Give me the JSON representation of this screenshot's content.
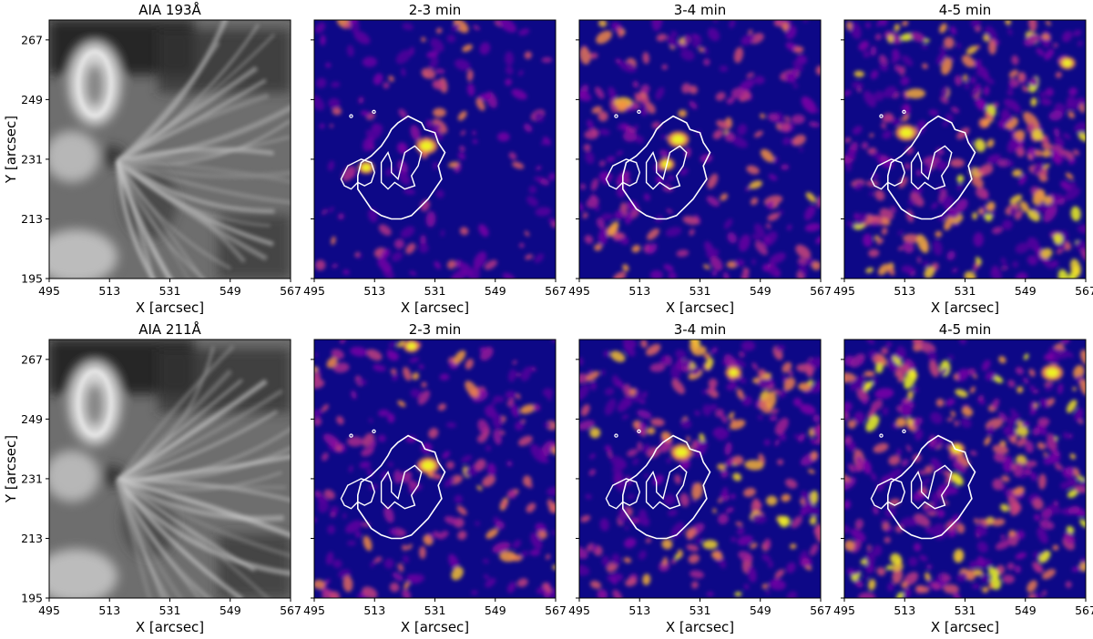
{
  "chart_data": [
    {
      "type": "heatmap",
      "title": "AIA 193Å",
      "colormap": "gray",
      "xlabel": "X [arcsec]",
      "ylabel": "Y [arcsec]",
      "xlim": [
        495,
        567
      ],
      "ylim": [
        195,
        273
      ],
      "xticks": [
        "495",
        "513",
        "531",
        "549",
        "567"
      ],
      "yticks": [
        "195",
        "213",
        "231",
        "249",
        "267"
      ],
      "contours": false
    },
    {
      "type": "heatmap",
      "title": "2-3 min",
      "colormap": "plasma",
      "activity_level": 0.25,
      "xlabel": "X [arcsec]",
      "ylabel": "",
      "xlim": [
        495,
        567
      ],
      "ylim": [
        195,
        273
      ],
      "xticks": [
        "495",
        "513",
        "531",
        "549",
        "567"
      ],
      "yticks": [
        "",
        "",
        "",
        "",
        ""
      ],
      "contours": true,
      "hotspots": [
        [
          528.5,
          235
        ],
        [
          510.5,
          228.5
        ]
      ]
    },
    {
      "type": "heatmap",
      "title": "3-4 min",
      "colormap": "plasma",
      "activity_level": 0.5,
      "xlabel": "X [arcsec]",
      "ylabel": "",
      "xlim": [
        495,
        567
      ],
      "ylim": [
        195,
        273
      ],
      "xticks": [
        "495",
        "513",
        "531",
        "549",
        "567"
      ],
      "yticks": [
        "",
        "",
        "",
        "",
        ""
      ],
      "contours": true,
      "hotspots": [
        [
          524.5,
          237
        ],
        [
          521,
          229.5
        ]
      ]
    },
    {
      "type": "heatmap",
      "title": "4-5 min",
      "colormap": "plasma",
      "activity_level": 0.8,
      "xlabel": "X [arcsec]",
      "ylabel": "",
      "xlim": [
        495,
        567
      ],
      "ylim": [
        195,
        273
      ],
      "xticks": [
        "495",
        "513",
        "531",
        "549",
        "567"
      ],
      "yticks": [
        "",
        "",
        "",
        "",
        ""
      ],
      "contours": true,
      "hotspots": [
        [
          513.5,
          239
        ],
        [
          561.5,
          260
        ]
      ]
    },
    {
      "type": "heatmap",
      "title": "AIA 211Å",
      "colormap": "gray",
      "xlabel": "X [arcsec]",
      "ylabel": "Y [arcsec]",
      "xlim": [
        495,
        567
      ],
      "ylim": [
        195,
        273
      ],
      "xticks": [
        "495",
        "513",
        "531",
        "549",
        "567"
      ],
      "yticks": [
        "195",
        "213",
        "231",
        "249",
        "267"
      ],
      "contours": false
    },
    {
      "type": "heatmap",
      "title": "2-3 min",
      "colormap": "plasma",
      "activity_level": 0.45,
      "xlabel": "X [arcsec]",
      "ylabel": "",
      "xlim": [
        495,
        567
      ],
      "ylim": [
        195,
        273
      ],
      "xticks": [
        "495",
        "513",
        "531",
        "549",
        "567"
      ],
      "yticks": [
        "",
        "",
        "",
        "",
        ""
      ],
      "contours": true,
      "hotspots": [
        [
          529,
          235
        ],
        [
          524,
          271
        ]
      ]
    },
    {
      "type": "heatmap",
      "title": "3-4 min",
      "colormap": "plasma",
      "activity_level": 0.65,
      "xlabel": "X [arcsec]",
      "ylabel": "",
      "xlim": [
        495,
        567
      ],
      "ylim": [
        195,
        273
      ],
      "xticks": [
        "495",
        "513",
        "531",
        "549",
        "567"
      ],
      "yticks": [
        "",
        "",
        "",
        "",
        ""
      ],
      "contours": true,
      "hotspots": [
        [
          525.5,
          239
        ],
        [
          541,
          263
        ]
      ]
    },
    {
      "type": "heatmap",
      "title": "4-5 min",
      "colormap": "plasma",
      "activity_level": 0.85,
      "xlabel": "X [arcsec]",
      "ylabel": "",
      "xlim": [
        495,
        567
      ],
      "ylim": [
        195,
        273
      ],
      "xticks": [
        "495",
        "513",
        "531",
        "549",
        "567"
      ],
      "yticks": [
        "",
        "",
        "",
        "",
        ""
      ],
      "contours": true,
      "hotspots": [
        [
          557,
          263
        ],
        [
          528.5,
          240
        ]
      ]
    }
  ],
  "colors": {
    "background": "#0d0887",
    "hot": "#f0f921",
    "mid": "#cc4778",
    "contour": "#ffffff"
  }
}
